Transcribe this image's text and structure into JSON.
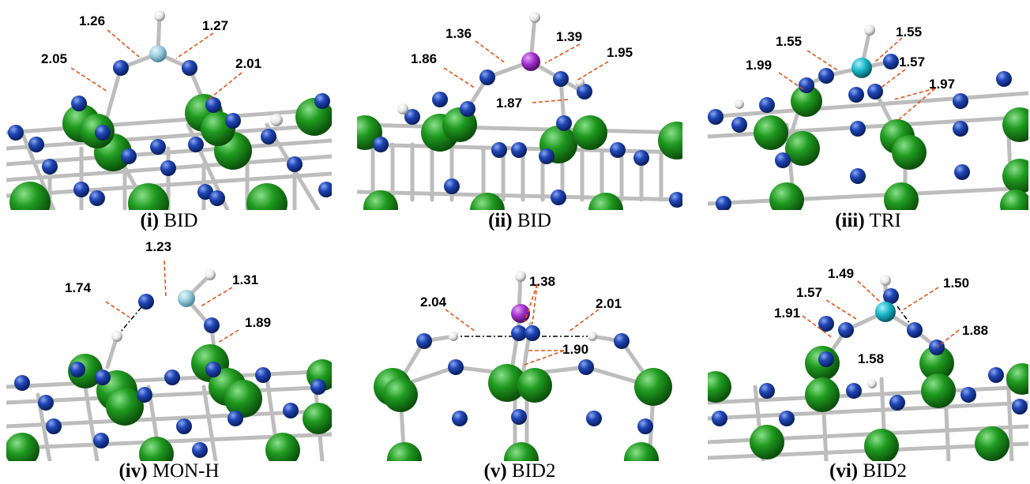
{
  "panels": [
    {
      "id": "i",
      "numeral": "(i)",
      "name": "BID",
      "labels": [
        "1.26",
        "1.27",
        "2.05",
        "2.01"
      ]
    },
    {
      "id": "ii",
      "numeral": "(ii)",
      "name": "BID",
      "labels": [
        "1.36",
        "1.39",
        "1.86",
        "1.95",
        "1.87"
      ]
    },
    {
      "id": "iii",
      "numeral": "(iii)",
      "name": "TRI",
      "labels": [
        "1.55",
        "1.55",
        "1.99",
        "1.57",
        "1.97"
      ]
    },
    {
      "id": "iv",
      "numeral": "(iv)",
      "name": "MON-H",
      "labels": [
        "1.23",
        "1.74",
        "1.31",
        "1.89"
      ]
    },
    {
      "id": "v",
      "numeral": "(v)",
      "name": "BID2",
      "labels": [
        "1.38",
        "2.04",
        "2.01",
        "1.90"
      ]
    },
    {
      "id": "vi",
      "numeral": "(vi)",
      "name": "BID2",
      "labels": [
        "1.49",
        "1.50",
        "1.57",
        "1.91",
        "1.88",
        "1.58"
      ]
    }
  ],
  "colors": {
    "tungsten": "#1f9a1f",
    "nitrogen": "#1f45b5",
    "hydrogen": "#f2f2f2",
    "boron_like": "#9ccfdf",
    "phosphorus_like": "#a52fd0",
    "cyan_center": "#1ab7c9",
    "bond": "#c4c4c4",
    "dash": "#e0541a"
  }
}
